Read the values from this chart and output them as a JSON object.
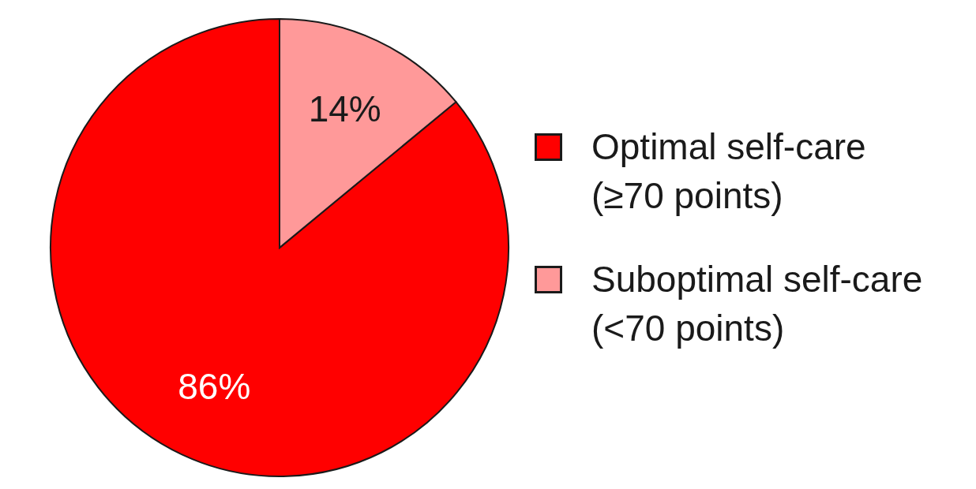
{
  "chart_data": {
    "type": "pie",
    "categories": [
      "Optimal self-care\n(≥70 points)",
      "Suboptimal self-care\n(<70 points)"
    ],
    "values": [
      86,
      14
    ],
    "colors": [
      "#ff0000",
      "#ff9999"
    ],
    "value_labels": [
      "86%",
      "14%"
    ],
    "legend": "right"
  }
}
